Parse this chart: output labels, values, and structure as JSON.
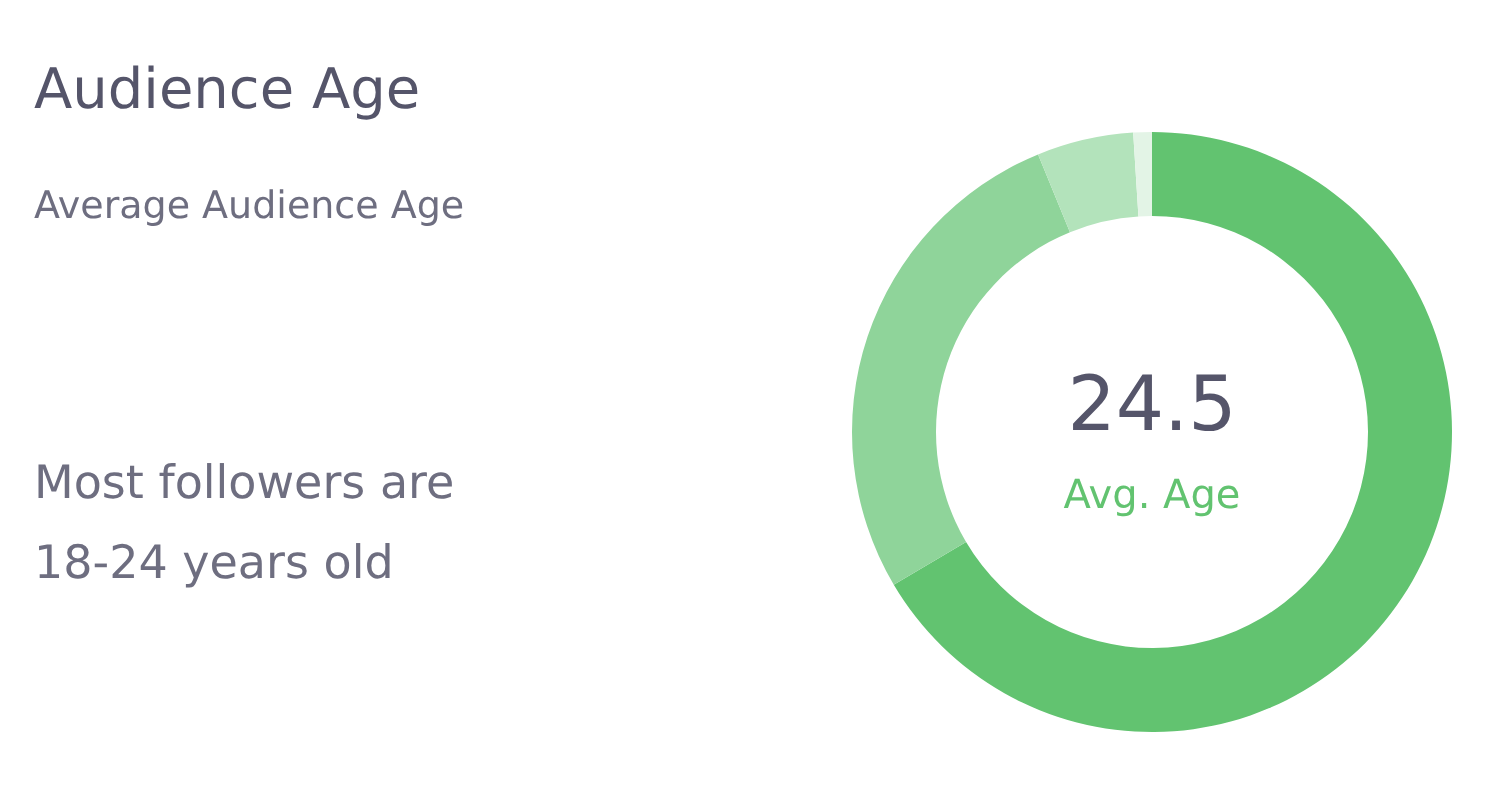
{
  "chart_data": {
    "type": "donut",
    "title": "Audience Age",
    "subtitle": "Average Audience Age",
    "categories": [
      null,
      null,
      null,
      null
    ],
    "values": [
      66.5,
      27.3,
      5.2,
      1.0
    ],
    "colors": [
      "#62c370",
      "#8fd49a",
      "#b3e3bb",
      "#e3f4e6"
    ],
    "annotations": [
      "24.5",
      "Avg. Age",
      "Most followers are 18-24 years old"
    ]
  }
}
